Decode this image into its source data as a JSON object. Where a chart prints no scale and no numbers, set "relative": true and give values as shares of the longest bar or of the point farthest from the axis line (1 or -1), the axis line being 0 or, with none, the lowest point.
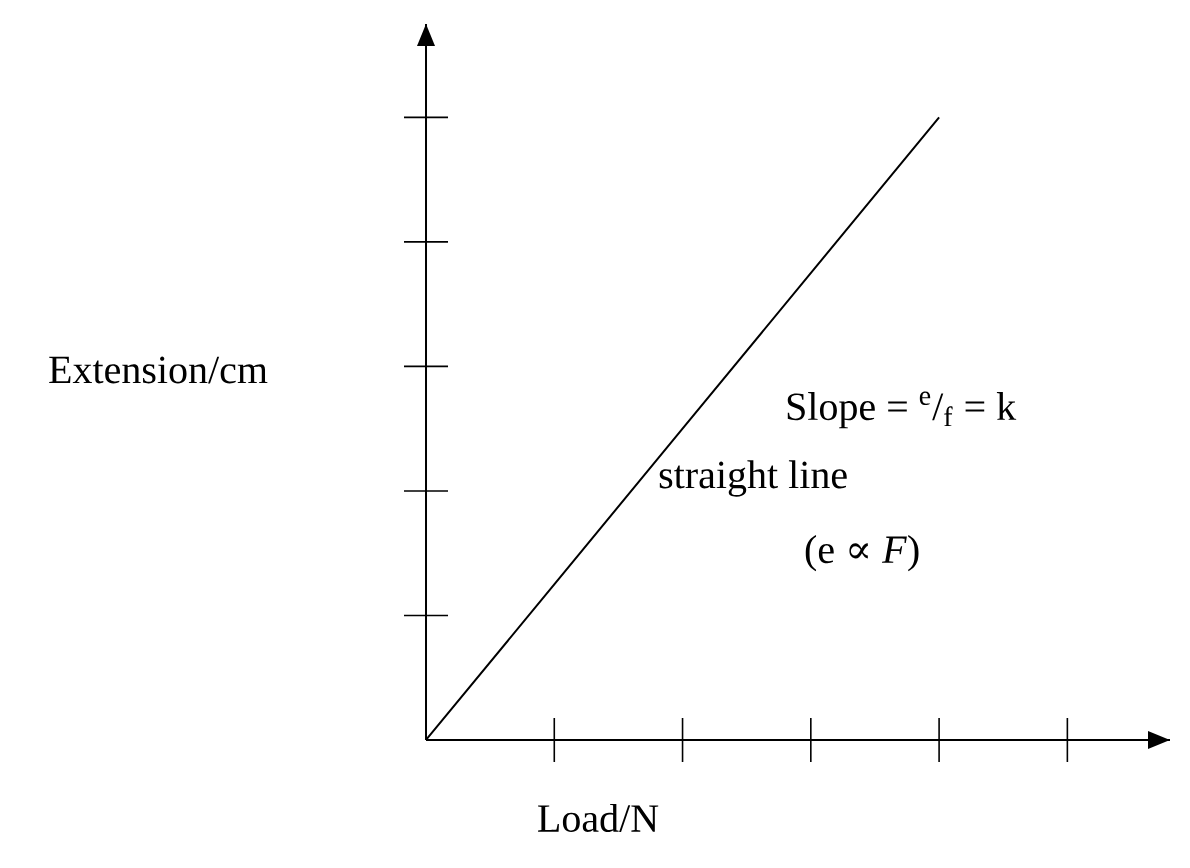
{
  "chart_data": {
    "type": "line",
    "xlabel": "Load/N",
    "ylabel": "Extension/cm",
    "categories": [
      null,
      null,
      null,
      null,
      null,
      null
    ],
    "values": [
      0,
      0.25,
      0.5,
      0.75,
      1,
      null
    ],
    "relative": true,
    "color": "#000000",
    "marker": "none",
    "annotations": [
      "Slope = $^{e}$/$_{f}$ = k",
      "straight line",
      "(e ∝ *F*)"
    ]
  }
}
